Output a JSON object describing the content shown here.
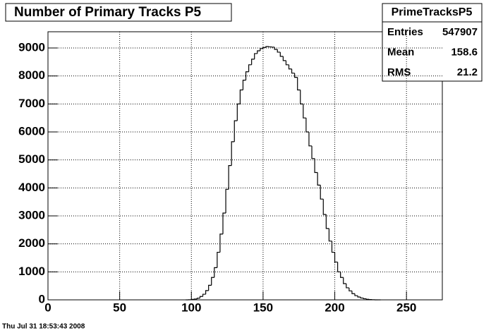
{
  "chart_data": {
    "type": "histogram",
    "title": "Number of Primary Tracks P5",
    "stats": {
      "name": "PrimeTracksP5",
      "rows": [
        [
          "Entries",
          547907
        ],
        [
          "Mean",
          158.6
        ],
        [
          "RMS",
          21.2
        ]
      ]
    },
    "bins": [
      96,
      98,
      100,
      102,
      104,
      106,
      108,
      110,
      112,
      114,
      116,
      118,
      120,
      122,
      124,
      126,
      128,
      130,
      132,
      134,
      136,
      138,
      140,
      142,
      144,
      146,
      148,
      150,
      152,
      154,
      156,
      158,
      160,
      162,
      164,
      166,
      168,
      170,
      172,
      174,
      176,
      178,
      180,
      182,
      184,
      186,
      188,
      190,
      192,
      194,
      196,
      198,
      200,
      202,
      204,
      206,
      208,
      210,
      212,
      214,
      216,
      218,
      220,
      222,
      224,
      226,
      228,
      230,
      232
    ],
    "values": [
      0,
      5,
      15,
      30,
      60,
      120,
      200,
      330,
      520,
      800,
      1150,
      1700,
      2350,
      3100,
      3950,
      4800,
      5650,
      6400,
      7000,
      7500,
      7850,
      8150,
      8400,
      8600,
      8800,
      8900,
      8980,
      9020,
      9050,
      9040,
      9030,
      8950,
      8850,
      8700,
      8550,
      8400,
      8250,
      8100,
      7950,
      7500,
      7000,
      6500,
      6000,
      5500,
      5050,
      4550,
      4100,
      3600,
      3050,
      2550,
      2100,
      1700,
      1350,
      1000,
      800,
      580,
      430,
      320,
      220,
      150,
      100,
      65,
      40,
      20,
      10,
      4,
      0,
      0
    ],
    "color": "#000000",
    "xlim": [
      0,
      275
    ],
    "xticks": [
      0,
      50,
      100,
      150,
      200,
      250
    ],
    "ylim": [
      0,
      9580
    ],
    "yticks": [
      0,
      1000,
      2000,
      3000,
      4000,
      5000,
      6000,
      7000,
      8000,
      9000
    ],
    "grid": true,
    "footer": "Thu Jul 31 18:53:43 2008"
  }
}
